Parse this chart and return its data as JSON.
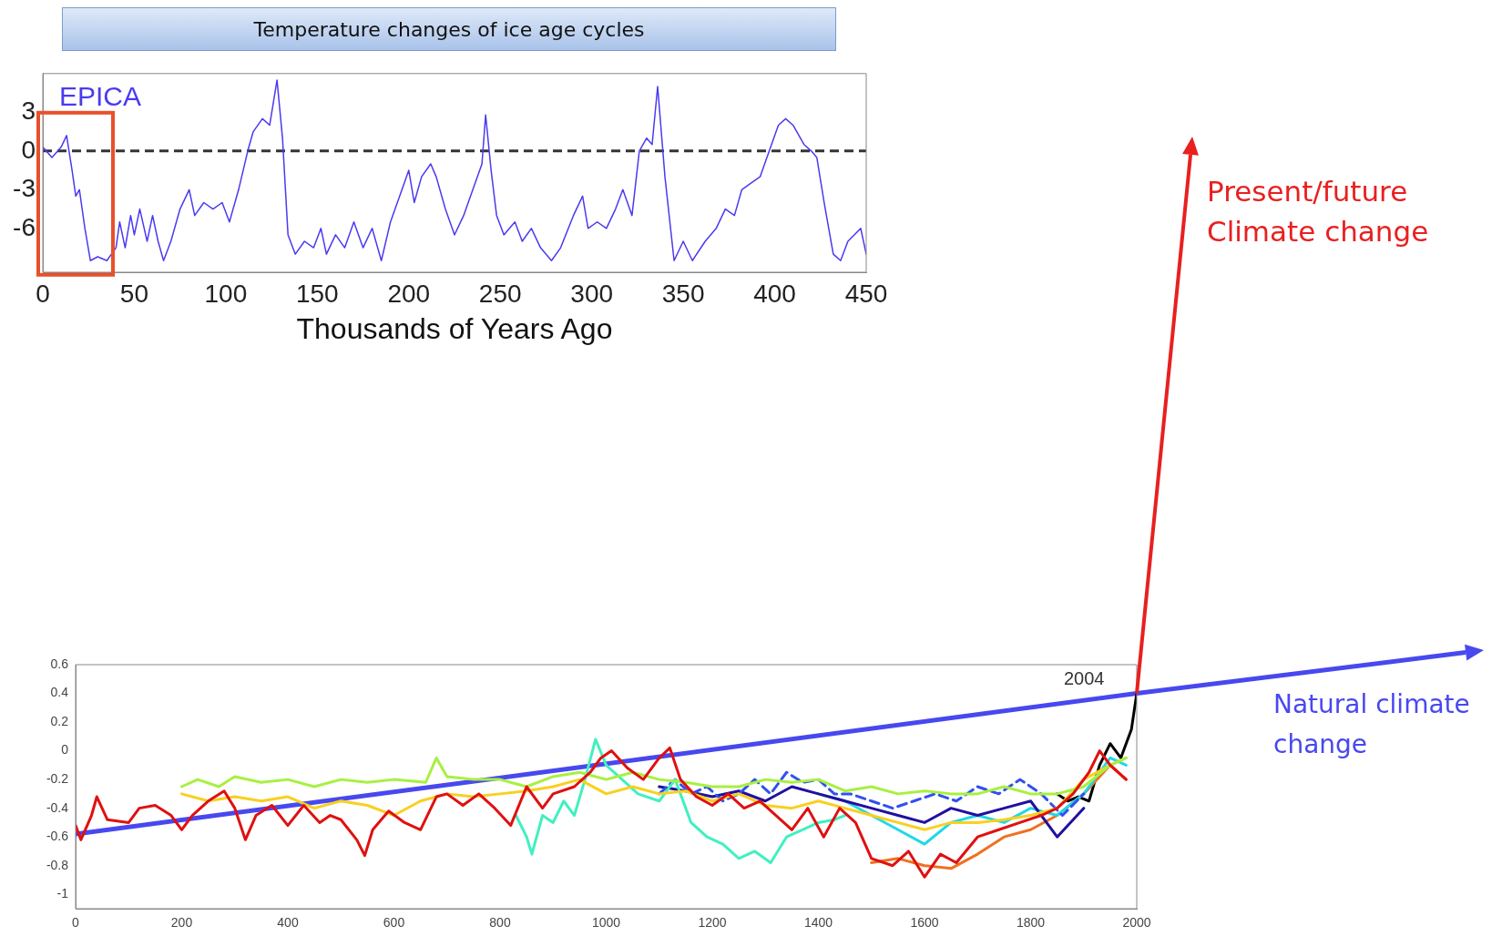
{
  "chart_data": [
    {
      "type": "line",
      "title": "Temperature changes of ice age cycles",
      "xlabel": "Thousands of Years Ago",
      "xlim": [
        0,
        450
      ],
      "xticks": [
        0,
        50,
        100,
        150,
        200,
        250,
        300,
        350,
        400,
        450
      ],
      "ylim": [
        -9.4,
        6
      ],
      "yticks": [
        -6,
        -3,
        0,
        3
      ],
      "grid": false,
      "legend": false,
      "marker": "none",
      "ref_lines": [
        {
          "axis": "y",
          "value": 0,
          "color": "#333333",
          "line_style": "dashed"
        }
      ],
      "series": [
        {
          "name": "EPICA",
          "color": "#4a3af0",
          "x": [
            0,
            5,
            10,
            13,
            16,
            18,
            20,
            23,
            26,
            30,
            35,
            40,
            42,
            45,
            48,
            50,
            53,
            57,
            60,
            63,
            66,
            70,
            75,
            80,
            83,
            88,
            93,
            98,
            102,
            107,
            112,
            115,
            120,
            124,
            128,
            131,
            134,
            138,
            143,
            148,
            152,
            155,
            160,
            165,
            170,
            175,
            180,
            185,
            190,
            195,
            200,
            203,
            207,
            212,
            215,
            220,
            225,
            230,
            235,
            240,
            242,
            245,
            248,
            252,
            258,
            262,
            267,
            272,
            278,
            283,
            290,
            295,
            298,
            303,
            308,
            313,
            317,
            322,
            326,
            330,
            333,
            336,
            340,
            345,
            350,
            355,
            362,
            368,
            373,
            378,
            382,
            387,
            392,
            397,
            402,
            406,
            410,
            416,
            420,
            423,
            427,
            432,
            436,
            440,
            447,
            450
          ],
          "values": [
            0.3,
            -0.5,
            0.3,
            1.2,
            -1.5,
            -3.5,
            -3,
            -6,
            -8.5,
            -8.2,
            -8.5,
            -7.5,
            -5.5,
            -7.5,
            -5,
            -6.5,
            -4.5,
            -7,
            -5,
            -7,
            -8.5,
            -7,
            -4.5,
            -3,
            -5,
            -4,
            -4.5,
            -4,
            -5.5,
            -3,
            0,
            1.5,
            2.5,
            2,
            5.5,
            1,
            -6.5,
            -8,
            -7,
            -7.5,
            -6,
            -8,
            -6.5,
            -7.5,
            -5.5,
            -7.5,
            -6,
            -8.5,
            -5.5,
            -3.5,
            -1.5,
            -4,
            -2,
            -1,
            -2,
            -4.5,
            -6.5,
            -5,
            -3,
            -1,
            2.8,
            -1.5,
            -5,
            -6.5,
            -5.5,
            -7,
            -6,
            -7.5,
            -8.5,
            -7.5,
            -5,
            -3.5,
            -6,
            -5.5,
            -6,
            -4.5,
            -3,
            -5,
            0,
            1,
            0.5,
            5,
            -2,
            -8.5,
            -7,
            -8.5,
            -7,
            -6,
            -4.5,
            -5,
            -3,
            -2.5,
            -2,
            0,
            2,
            2.5,
            2,
            0.5,
            0,
            -0.5,
            -4,
            -8,
            -8.5,
            -7,
            -6,
            -8
          ]
        }
      ]
    },
    {
      "type": "line",
      "xlim": [
        0,
        2000
      ],
      "xticks": [
        0,
        200,
        400,
        600,
        800,
        1000,
        1200,
        1400,
        1600,
        1800,
        2000
      ],
      "ylim": [
        -1.1,
        0.6
      ],
      "yticks": [
        -1,
        -0.8,
        -0.6,
        -0.4,
        -0.2,
        0,
        0.2,
        0.4,
        0.6
      ],
      "grid": false,
      "legend": "right",
      "marker": "none",
      "annotations": [
        "2004",
        "Present/future Climate change"
      ],
      "series": [
        {
          "color": "#e01010",
          "x": [
            0,
            10,
            30,
            40,
            60,
            100,
            120,
            150,
            180,
            200,
            220,
            250,
            280,
            300,
            320,
            340,
            370,
            400,
            430,
            460,
            480,
            500,
            530,
            545,
            560,
            590,
            620,
            650,
            680,
            700,
            730,
            760,
            790,
            820,
            850,
            880,
            900,
            940,
            970,
            990,
            1010,
            1040,
            1070,
            1100,
            1120,
            1140,
            1170,
            1200,
            1230,
            1260,
            1290,
            1320,
            1350,
            1380,
            1410,
            1440,
            1470,
            1500,
            1540,
            1570,
            1600,
            1630,
            1660,
            1700,
            1740,
            1780,
            1820,
            1850,
            1880,
            1910,
            1930,
            1950,
            1980
          ],
          "values": [
            -0.52,
            -0.62,
            -0.45,
            -0.32,
            -0.48,
            -0.5,
            -0.4,
            -0.38,
            -0.45,
            -0.55,
            -0.45,
            -0.35,
            -0.28,
            -0.4,
            -0.62,
            -0.45,
            -0.38,
            -0.52,
            -0.38,
            -0.5,
            -0.45,
            -0.48,
            -0.62,
            -0.73,
            -0.55,
            -0.42,
            -0.5,
            -0.55,
            -0.32,
            -0.3,
            -0.38,
            -0.3,
            -0.4,
            -0.52,
            -0.25,
            -0.4,
            -0.3,
            -0.25,
            -0.15,
            -0.05,
            0,
            -0.12,
            -0.2,
            -0.05,
            0.02,
            -0.2,
            -0.32,
            -0.38,
            -0.3,
            -0.4,
            -0.35,
            -0.45,
            -0.55,
            -0.4,
            -0.6,
            -0.4,
            -0.5,
            -0.75,
            -0.8,
            -0.7,
            -0.88,
            -0.72,
            -0.78,
            -0.6,
            -0.55,
            -0.5,
            -0.45,
            -0.4,
            -0.3,
            -0.15,
            0,
            -0.1,
            -0.2
          ]
        },
        {
          "color": "#a8f040",
          "x": [
            200,
            230,
            270,
            300,
            350,
            400,
            450,
            500,
            550,
            600,
            660,
            680,
            700,
            750,
            800,
            850,
            900,
            950,
            1000,
            1050,
            1100,
            1150,
            1200,
            1250,
            1300,
            1350,
            1400,
            1450,
            1500,
            1550,
            1600,
            1650,
            1700,
            1750,
            1800,
            1850,
            1900,
            1950,
            1980
          ],
          "values": [
            -0.25,
            -0.2,
            -0.25,
            -0.18,
            -0.22,
            -0.2,
            -0.25,
            -0.2,
            -0.22,
            -0.2,
            -0.22,
            -0.05,
            -0.18,
            -0.2,
            -0.2,
            -0.25,
            -0.18,
            -0.15,
            -0.2,
            -0.15,
            -0.2,
            -0.22,
            -0.25,
            -0.25,
            -0.2,
            -0.22,
            -0.2,
            -0.28,
            -0.25,
            -0.3,
            -0.28,
            -0.3,
            -0.3,
            -0.25,
            -0.3,
            -0.3,
            -0.25,
            -0.1,
            -0.05
          ]
        },
        {
          "color": "#f8d020",
          "x": [
            200,
            250,
            300,
            350,
            400,
            450,
            500,
            550,
            600,
            650,
            700,
            750,
            800,
            850,
            900,
            950,
            1000,
            1050,
            1100,
            1150,
            1200,
            1250,
            1300,
            1350,
            1400,
            1450,
            1500,
            1550,
            1600,
            1650,
            1700,
            1750,
            1800,
            1850,
            1900,
            1950,
            1980
          ],
          "values": [
            -0.3,
            -0.35,
            -0.32,
            -0.35,
            -0.32,
            -0.4,
            -0.35,
            -0.38,
            -0.45,
            -0.35,
            -0.3,
            -0.32,
            -0.3,
            -0.28,
            -0.25,
            -0.2,
            -0.3,
            -0.25,
            -0.3,
            -0.28,
            -0.35,
            -0.3,
            -0.38,
            -0.4,
            -0.35,
            -0.4,
            -0.45,
            -0.5,
            -0.55,
            -0.5,
            -0.5,
            -0.48,
            -0.45,
            -0.4,
            -0.2,
            -0.1,
            -0.05
          ]
        },
        {
          "color": "#40f0c0",
          "x": [
            830,
            850,
            860,
            880,
            900,
            920,
            940,
            960,
            980,
            1000,
            1030,
            1060,
            1100,
            1130,
            1160,
            1190,
            1220,
            1250,
            1280,
            1310,
            1340,
            1370,
            1400,
            1430,
            1450
          ],
          "values": [
            -0.45,
            -0.6,
            -0.72,
            -0.45,
            -0.5,
            -0.35,
            -0.45,
            -0.2,
            0.08,
            -0.1,
            -0.2,
            -0.3,
            -0.35,
            -0.2,
            -0.5,
            -0.6,
            -0.65,
            -0.75,
            -0.7,
            -0.78,
            -0.6,
            -0.55,
            -0.5,
            -0.48,
            -0.45
          ]
        },
        {
          "color": "#3050f0",
          "line_style": "dashed",
          "x": [
            1100,
            1130,
            1160,
            1190,
            1220,
            1250,
            1280,
            1310,
            1340,
            1370,
            1400,
            1430,
            1460,
            1500,
            1540,
            1580,
            1620,
            1660,
            1700,
            1740,
            1780,
            1820,
            1860,
            1900
          ],
          "values": [
            -0.3,
            -0.2,
            -0.3,
            -0.25,
            -0.35,
            -0.3,
            -0.2,
            -0.3,
            -0.15,
            -0.22,
            -0.2,
            -0.3,
            -0.3,
            -0.35,
            -0.4,
            -0.35,
            -0.3,
            -0.35,
            -0.25,
            -0.3,
            -0.2,
            -0.3,
            -0.45,
            -0.3
          ]
        },
        {
          "color": "#2010a0",
          "x": [
            1100,
            1150,
            1200,
            1250,
            1300,
            1350,
            1400,
            1450,
            1500,
            1550,
            1600,
            1650,
            1700,
            1750,
            1800,
            1850,
            1900
          ],
          "values": [
            -0.25,
            -0.28,
            -0.32,
            -0.28,
            -0.35,
            -0.25,
            -0.3,
            -0.35,
            -0.4,
            -0.45,
            -0.5,
            -0.4,
            -0.45,
            -0.4,
            -0.35,
            -0.6,
            -0.4
          ]
        },
        {
          "color": "#20d8e8",
          "x": [
            1400,
            1450,
            1500,
            1550,
            1600,
            1650,
            1700,
            1750,
            1800,
            1850,
            1900,
            1950,
            1980
          ],
          "values": [
            -0.3,
            -0.35,
            -0.45,
            -0.55,
            -0.65,
            -0.5,
            -0.45,
            -0.5,
            -0.4,
            -0.45,
            -0.3,
            -0.05,
            -0.1
          ]
        },
        {
          "color": "#f07020",
          "x": [
            1500,
            1550,
            1600,
            1650,
            1700,
            1750,
            1800,
            1850,
            1900,
            1950,
            1980
          ],
          "values": [
            -0.78,
            -0.75,
            -0.8,
            -0.82,
            -0.72,
            -0.6,
            -0.55,
            -0.45,
            -0.3,
            -0.1,
            -0.2
          ]
        },
        {
          "color": "#000000",
          "x": [
            1850,
            1870,
            1890,
            1910,
            1930,
            1950,
            1970,
            1990,
            2000
          ],
          "values": [
            -0.3,
            -0.35,
            -0.32,
            -0.35,
            -0.1,
            0.05,
            -0.05,
            0.15,
            0.4
          ]
        },
        {
          "name": "Natural climate change",
          "color": "#4848f0",
          "x": [
            0,
            2000
          ],
          "values": [
            -0.58,
            0.4
          ]
        }
      ]
    }
  ]
}
